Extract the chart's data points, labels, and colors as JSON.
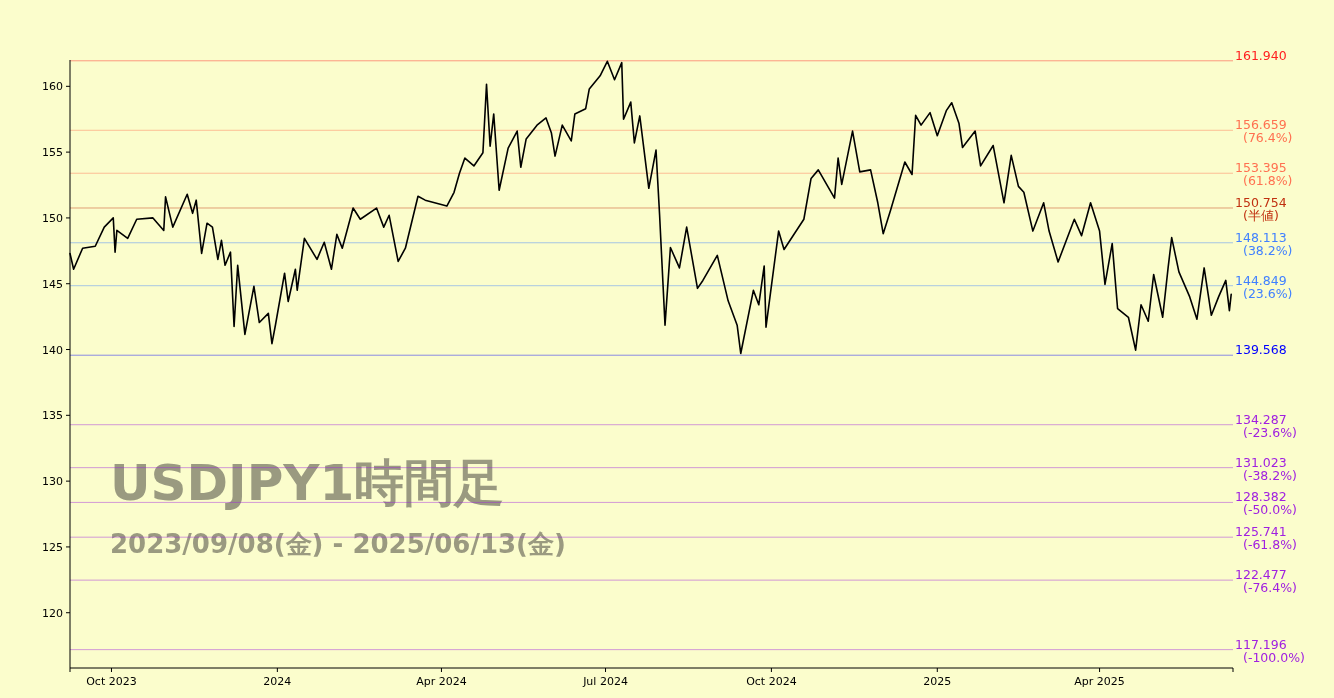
{
  "chart_data": {
    "type": "line",
    "title": "USDJPY1時間足",
    "subtitle": "2023/09/08(金) - 2025/06/13(金)",
    "x": [
      "2023-09-08",
      "2023-09-10",
      "2023-09-15",
      "2023-09-22",
      "2023-09-27",
      "2023-10-02",
      "2023-10-03",
      "2023-10-04",
      "2023-10-10",
      "2023-10-15",
      "2023-10-24",
      "2023-10-30",
      "2023-10-31",
      "2023-11-04",
      "2023-11-12",
      "2023-11-15",
      "2023-11-17",
      "2023-11-20",
      "2023-11-23",
      "2023-11-26",
      "2023-11-29",
      "2023-12-01",
      "2023-12-03",
      "2023-12-06",
      "2023-12-08",
      "2023-12-10",
      "2023-12-14",
      "2023-12-19",
      "2023-12-22",
      "2023-12-27",
      "2023-12-29",
      "2023-12-31",
      "2024-01-05",
      "2024-01-07",
      "2024-01-11",
      "2024-01-12",
      "2024-01-16",
      "2024-01-23",
      "2024-01-27",
      "2024-01-31",
      "2024-02-03",
      "2024-02-06",
      "2024-02-12",
      "2024-02-16",
      "2024-02-25",
      "2024-02-29",
      "2024-03-03",
      "2024-03-08",
      "2024-03-12",
      "2024-03-19",
      "2024-03-23",
      "2024-04-04",
      "2024-04-08",
      "2024-04-11",
      "2024-04-14",
      "2024-04-19",
      "2024-04-24",
      "2024-04-26",
      "2024-04-28",
      "2024-04-30",
      "2024-05-03",
      "2024-05-08",
      "2024-05-13",
      "2024-05-15",
      "2024-05-18",
      "2024-05-24",
      "2024-05-29",
      "2024-06-01",
      "2024-06-03",
      "2024-06-07",
      "2024-06-12",
      "2024-06-14",
      "2024-06-20",
      "2024-06-22",
      "2024-06-28",
      "2024-07-02",
      "2024-07-06",
      "2024-07-10",
      "2024-07-11",
      "2024-07-15",
      "2024-07-17",
      "2024-07-20",
      "2024-07-25",
      "2024-07-29",
      "2024-07-31",
      "2024-08-03",
      "2024-08-06",
      "2024-08-11",
      "2024-08-15",
      "2024-08-21",
      "2024-08-24",
      "2024-09-01",
      "2024-09-07",
      "2024-09-12",
      "2024-09-14",
      "2024-09-21",
      "2024-09-24",
      "2024-09-27",
      "2024-09-28",
      "2024-10-05",
      "2024-10-08",
      "2024-10-19",
      "2024-10-23",
      "2024-10-27",
      "2024-11-05",
      "2024-11-07",
      "2024-11-09",
      "2024-11-15",
      "2024-11-19",
      "2024-11-25",
      "2024-11-29",
      "2024-12-02",
      "2024-12-06",
      "2024-12-14",
      "2024-12-18",
      "2024-12-20",
      "2024-12-23",
      "2024-12-28",
      "2025-01-01",
      "2025-01-06",
      "2025-01-09",
      "2025-01-13",
      "2025-01-15",
      "2025-01-22",
      "2025-01-25",
      "2025-02-01",
      "2025-02-07",
      "2025-02-11",
      "2025-02-15",
      "2025-02-18",
      "2025-02-23",
      "2025-03-01",
      "2025-03-04",
      "2025-03-09",
      "2025-03-18",
      "2025-03-22",
      "2025-03-27",
      "2025-04-01",
      "2025-04-04",
      "2025-04-08",
      "2025-04-11",
      "2025-04-17",
      "2025-04-21",
      "2025-04-24",
      "2025-04-28",
      "2025-05-01",
      "2025-05-06",
      "2025-05-09",
      "2025-05-11",
      "2025-05-15",
      "2025-05-21",
      "2025-05-25",
      "2025-05-29",
      "2025-06-02",
      "2025-06-06",
      "2025-06-10",
      "2025-06-12",
      "2025-06-13"
    ],
    "series": [
      {
        "color": "#000000",
        "values": [
          147.3,
          146.1,
          147.7,
          147.85,
          149.3,
          150.0,
          147.4,
          149.05,
          148.45,
          149.9,
          150.0,
          149.05,
          151.6,
          149.3,
          151.8,
          150.35,
          151.35,
          147.3,
          149.6,
          149.3,
          146.85,
          148.3,
          146.4,
          147.4,
          141.75,
          146.4,
          141.15,
          144.8,
          142.05,
          142.75,
          140.45,
          141.9,
          145.8,
          143.65,
          146.1,
          144.5,
          148.45,
          146.85,
          148.15,
          146.1,
          148.75,
          147.7,
          150.75,
          149.9,
          150.75,
          149.3,
          150.2,
          146.7,
          147.7,
          151.65,
          151.35,
          150.9,
          151.95,
          153.4,
          154.55,
          153.95,
          154.95,
          160.15,
          155.45,
          157.9,
          152.1,
          155.3,
          156.6,
          153.85,
          156.0,
          157.05,
          157.6,
          156.45,
          154.7,
          157.05,
          155.85,
          157.9,
          158.3,
          159.8,
          160.8,
          161.9,
          160.5,
          161.8,
          157.5,
          158.8,
          155.7,
          157.75,
          152.25,
          155.15,
          150.2,
          141.85,
          147.75,
          146.2,
          149.3,
          144.65,
          145.25,
          147.15,
          143.7,
          141.85,
          139.7,
          144.5,
          143.4,
          146.35,
          141.7,
          149.0,
          147.6,
          149.9,
          153.0,
          153.65,
          151.5,
          154.55,
          152.55,
          156.6,
          153.5,
          153.65,
          151.15,
          148.8,
          150.55,
          154.25,
          153.3,
          157.8,
          157.05,
          158.0,
          156.25,
          158.15,
          158.75,
          157.2,
          155.35,
          156.6,
          153.95,
          155.5,
          151.15,
          154.75,
          152.4,
          151.95,
          149.0,
          151.15,
          149.0,
          146.65,
          149.9,
          148.65,
          151.15,
          149.0,
          144.95,
          148.05,
          143.1,
          142.45,
          139.95,
          143.4,
          142.15,
          145.7,
          142.45,
          146.2,
          148.5,
          145.9,
          144.0,
          142.3,
          146.2,
          142.6,
          144.0,
          145.25,
          142.95,
          144.2
        ]
      }
    ],
    "xlim": [
      "2023-09-08",
      "2025-06-14"
    ],
    "xticks": [
      {
        "value": "2023-10-01",
        "label": "Oct 2023"
      },
      {
        "value": "2024-01-01",
        "label": "2024"
      },
      {
        "value": "2024-04-01",
        "label": "Apr 2024"
      },
      {
        "value": "2024-07-01",
        "label": "Jul 2024"
      },
      {
        "value": "2024-10-01",
        "label": "Oct 2024"
      },
      {
        "value": "2025-01-01",
        "label": "2025"
      },
      {
        "value": "2025-04-01",
        "label": "Apr 2025"
      }
    ],
    "ylim": [
      115.8,
      162.0
    ],
    "yticks": [
      120,
      125,
      130,
      135,
      140,
      145,
      150,
      155,
      160
    ],
    "grid": false,
    "ref_lines": [
      {
        "axis": "y",
        "value": 161.94,
        "label": "161.940",
        "color": "#ff2020"
      },
      {
        "axis": "y",
        "value": 156.659,
        "label": "156.659\n(76.4%)",
        "color": "#ff7050"
      },
      {
        "axis": "y",
        "value": 153.395,
        "label": "153.395\n(61.8%)",
        "color": "#ff7050"
      },
      {
        "axis": "y",
        "value": 150.754,
        "label": "150.754\n(半値)",
        "color": "#c03010"
      },
      {
        "axis": "y",
        "value": 148.113,
        "label": "148.113\n(38.2%)",
        "color": "#4080ff"
      },
      {
        "axis": "y",
        "value": 144.849,
        "label": "144.849\n(23.6%)",
        "color": "#4080ff"
      },
      {
        "axis": "y",
        "value": 139.568,
        "label": "139.568",
        "color": "#0000ff"
      },
      {
        "axis": "y",
        "value": 134.287,
        "label": "134.287\n(-23.6%)",
        "color": "#a020e0"
      },
      {
        "axis": "y",
        "value": 131.023,
        "label": "131.023\n(-38.2%)",
        "color": "#a020e0"
      },
      {
        "axis": "y",
        "value": 128.382,
        "label": "128.382\n(-50.0%)",
        "color": "#a020e0"
      },
      {
        "axis": "y",
        "value": 125.741,
        "label": "125.741\n(-61.8%)",
        "color": "#a020e0"
      },
      {
        "axis": "y",
        "value": 122.477,
        "label": "122.477\n(-76.4%)",
        "color": "#a020e0"
      },
      {
        "axis": "y",
        "value": 117.196,
        "label": "117.196\n(-100.0%)",
        "color": "#a020e0"
      }
    ]
  }
}
